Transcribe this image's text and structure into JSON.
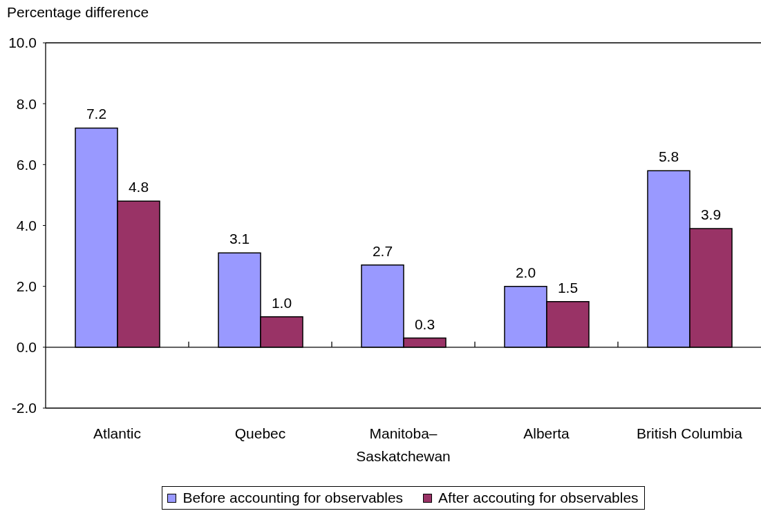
{
  "chart_data": {
    "type": "bar",
    "ylabel": "Percentage difference",
    "categories": [
      "Atlantic",
      "Quebec",
      "Manitoba–Saskatchewan",
      "Alberta",
      "British Columbia"
    ],
    "series": [
      {
        "name": "Before accounting for observables",
        "color": "#9999ff",
        "values": [
          7.2,
          3.1,
          2.7,
          2.0,
          5.8
        ],
        "value_labels": [
          "7.2",
          "3.1",
          "2.7",
          "2.0",
          "5.8"
        ]
      },
      {
        "name": "After accouting for observables",
        "color": "#993366",
        "values": [
          4.8,
          1.0,
          0.3,
          1.5,
          3.9
        ],
        "value_labels": [
          "4.8",
          "1.0",
          "0.3",
          "1.5",
          "3.9"
        ]
      }
    ],
    "ylim": [
      -2,
      10
    ],
    "yticks": [
      {
        "value": -2,
        "label": "-2.0"
      },
      {
        "value": 0,
        "label": "0.0"
      },
      {
        "value": 2,
        "label": "2.0"
      },
      {
        "value": 4,
        "label": "4.0"
      },
      {
        "value": 6,
        "label": "6.0"
      },
      {
        "value": 8,
        "label": "8.0"
      },
      {
        "value": 10,
        "label": "10.0"
      }
    ],
    "ref_lines": [
      {
        "axis": "y",
        "value": 0
      }
    ],
    "legend": "bottom"
  }
}
